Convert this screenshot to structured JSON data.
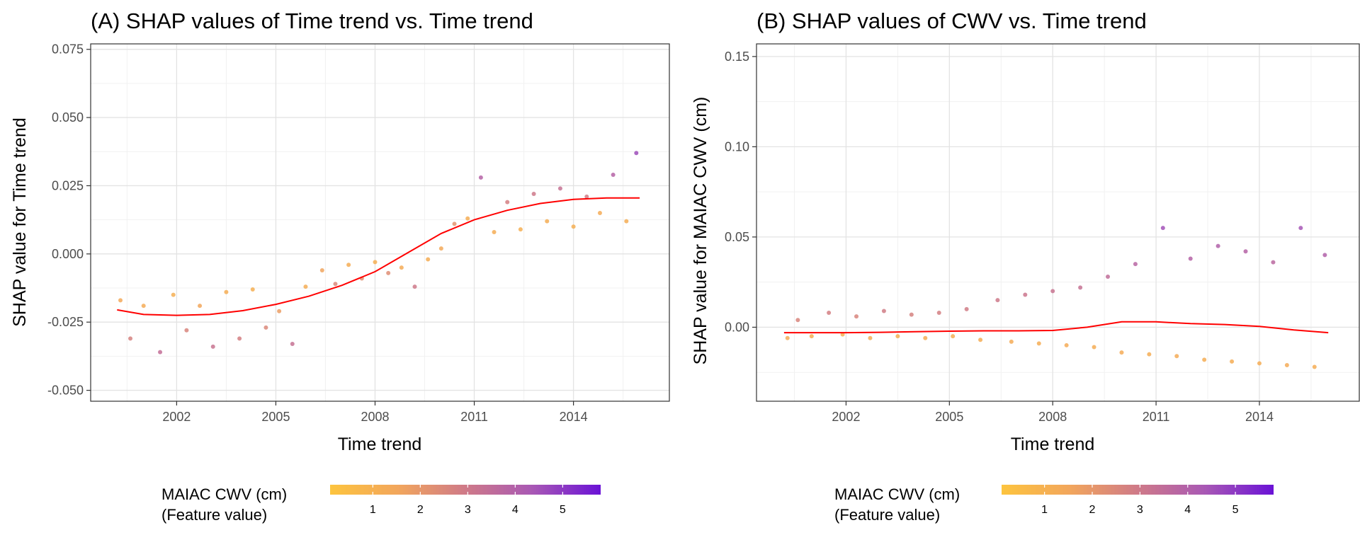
{
  "chart_data": [
    {
      "type": "scatter",
      "title": "(A) SHAP values of Time trend vs. Time trend",
      "xlabel": "Time trend",
      "ylabel": "SHAP value for Time trend",
      "x_ticks": [
        "2002",
        "2005",
        "2008",
        "2011",
        "2014"
      ],
      "x_tick_values": [
        2002,
        2005,
        2008,
        2011,
        2014
      ],
      "xlim": [
        1999.4,
        2016.9
      ],
      "y_ticks": [
        "-0.050",
        "-0.025",
        "0.000",
        "0.025",
        "0.050",
        "0.075"
      ],
      "y_tick_values": [
        -0.05,
        -0.025,
        0.0,
        0.025,
        0.05,
        0.075
      ],
      "ylim": [
        -0.054,
        0.077
      ],
      "grid": true,
      "smooth_line": {
        "color": "#ff0000",
        "x": [
          2000.2,
          2001,
          2002,
          2003,
          2004,
          2005,
          2006,
          2007,
          2008,
          2009,
          2010,
          2011,
          2012,
          2013,
          2014,
          2015,
          2016.0
        ],
        "y": [
          -0.0205,
          -0.0222,
          -0.0225,
          -0.0222,
          -0.0208,
          -0.0185,
          -0.0155,
          -0.0115,
          -0.0065,
          0.0005,
          0.0075,
          0.0125,
          0.016,
          0.0185,
          0.02,
          0.0205,
          0.0205
        ]
      },
      "series": [
        {
          "x": [
            2000.3,
            2000.6,
            2001.0,
            2001.5,
            2001.9,
            2002.3,
            2002.7,
            2003.1,
            2003.5,
            2003.9,
            2004.3,
            2004.7,
            2005.1,
            2005.5,
            2005.9,
            2006.4,
            2006.8,
            2007.2,
            2007.6,
            2008.0,
            2008.4,
            2008.8,
            2009.2,
            2009.6,
            2010.0,
            2010.4,
            2010.8,
            2011.2,
            2011.6,
            2012.0,
            2012.4,
            2012.8,
            2013.2,
            2013.6,
            2014.0,
            2014.4,
            2014.8,
            2015.2,
            2015.6,
            2015.9
          ],
          "y": [
            -0.017,
            -0.031,
            -0.019,
            -0.036,
            -0.015,
            -0.028,
            -0.019,
            -0.034,
            -0.014,
            -0.031,
            -0.013,
            -0.027,
            -0.021,
            -0.033,
            -0.012,
            -0.006,
            -0.011,
            -0.004,
            -0.009,
            -0.003,
            -0.007,
            -0.005,
            -0.012,
            -0.002,
            0.002,
            0.011,
            0.013,
            0.028,
            0.008,
            0.019,
            0.009,
            0.022,
            0.012,
            0.024,
            0.01,
            0.021,
            0.015,
            0.029,
            0.012,
            0.037
          ],
          "cwv": [
            1.4,
            2.7,
            1.3,
            3.4,
            1.1,
            2.6,
            1.5,
            3.2,
            1.2,
            2.8,
            1.1,
            2.5,
            1.8,
            3.3,
            1.2,
            1.6,
            2.5,
            1.2,
            2.2,
            1.1,
            2.3,
            1.3,
            3.0,
            1.2,
            1.4,
            2.1,
            1.2,
            3.9,
            1.2,
            2.8,
            1.1,
            3.0,
            1.2,
            3.3,
            1.1,
            2.9,
            1.3,
            3.9,
            1.2,
            4.6
          ]
        }
      ],
      "color_scale": {
        "title_line1": "MAIAC CWV (cm)",
        "title_line2": "(Feature value)",
        "ticks": [
          "1",
          "2",
          "3",
          "4",
          "5"
        ],
        "tick_values": [
          1,
          2,
          3,
          4,
          5
        ],
        "range": [
          0.1,
          5.8
        ],
        "colors": [
          "#fdc43e",
          "#f2a65c",
          "#cf7a88",
          "#a858b5",
          "#6a12d6"
        ]
      }
    },
    {
      "type": "scatter",
      "title": "(B) SHAP values of CWV vs. Time trend",
      "xlabel": "Time trend",
      "ylabel": "SHAP value for MAIAC CWV (cm)",
      "x_ticks": [
        "2002",
        "2005",
        "2008",
        "2011",
        "2014"
      ],
      "x_tick_values": [
        2002,
        2005,
        2008,
        2011,
        2014
      ],
      "xlim": [
        1999.4,
        2016.9
      ],
      "y_ticks": [
        "0.00",
        "0.05",
        "0.10",
        "0.15"
      ],
      "y_tick_values": [
        0.0,
        0.05,
        0.1,
        0.15
      ],
      "ylim": [
        -0.041,
        0.157
      ],
      "grid": true,
      "smooth_line": {
        "color": "#ff0000",
        "x": [
          2000.2,
          2001,
          2002,
          2003,
          2004,
          2005,
          2006,
          2007,
          2008,
          2009,
          2010,
          2011,
          2012,
          2013,
          2014,
          2015,
          2016.0
        ],
        "y": [
          -0.003,
          -0.003,
          -0.003,
          -0.0028,
          -0.0025,
          -0.0022,
          -0.002,
          -0.002,
          -0.0018,
          0.0,
          0.003,
          0.003,
          0.002,
          0.0015,
          0.0005,
          -0.0015,
          -0.003
        ]
      },
      "series": [
        {
          "x": [
            2000.3,
            2000.6,
            2001.0,
            2001.5,
            2001.9,
            2002.3,
            2002.7,
            2003.1,
            2003.5,
            2003.9,
            2004.3,
            2004.7,
            2005.1,
            2005.5,
            2005.9,
            2006.4,
            2006.8,
            2007.2,
            2007.6,
            2008.0,
            2008.4,
            2008.8,
            2009.2,
            2009.6,
            2010.0,
            2010.4,
            2010.8,
            2011.2,
            2011.6,
            2012.0,
            2012.4,
            2012.8,
            2013.2,
            2013.6,
            2014.0,
            2014.4,
            2014.8,
            2015.2,
            2015.6,
            2015.9
          ],
          "y": [
            -0.006,
            0.004,
            -0.005,
            0.008,
            -0.004,
            0.006,
            -0.006,
            0.009,
            -0.005,
            0.007,
            -0.006,
            0.008,
            -0.005,
            0.01,
            -0.007,
            0.015,
            -0.008,
            0.018,
            -0.009,
            0.02,
            -0.01,
            0.022,
            -0.011,
            0.028,
            -0.014,
            0.035,
            -0.015,
            0.055,
            -0.016,
            0.038,
            -0.018,
            0.045,
            -0.019,
            0.042,
            -0.02,
            0.036,
            -0.021,
            0.055,
            -0.022,
            0.04
          ],
          "cwv": [
            1.3,
            2.6,
            1.2,
            2.8,
            1.1,
            2.6,
            1.2,
            2.9,
            1.1,
            2.7,
            1.2,
            2.8,
            1.1,
            2.9,
            1.2,
            3.0,
            1.3,
            3.1,
            1.2,
            3.2,
            1.3,
            3.3,
            1.2,
            3.5,
            1.3,
            3.8,
            1.2,
            4.5,
            1.3,
            3.9,
            1.2,
            4.0,
            1.2,
            3.9,
            1.2,
            3.7,
            1.3,
            4.4,
            1.2,
            4.0
          ]
        }
      ],
      "color_scale": {
        "title_line1": "MAIAC CWV (cm)",
        "title_line2": "(Feature value)",
        "ticks": [
          "1",
          "2",
          "3",
          "4",
          "5"
        ],
        "tick_values": [
          1,
          2,
          3,
          4,
          5
        ],
        "range": [
          0.1,
          5.8
        ],
        "colors": [
          "#fdc43e",
          "#f2a65c",
          "#cf7a88",
          "#a858b5",
          "#6a12d6"
        ]
      }
    }
  ]
}
